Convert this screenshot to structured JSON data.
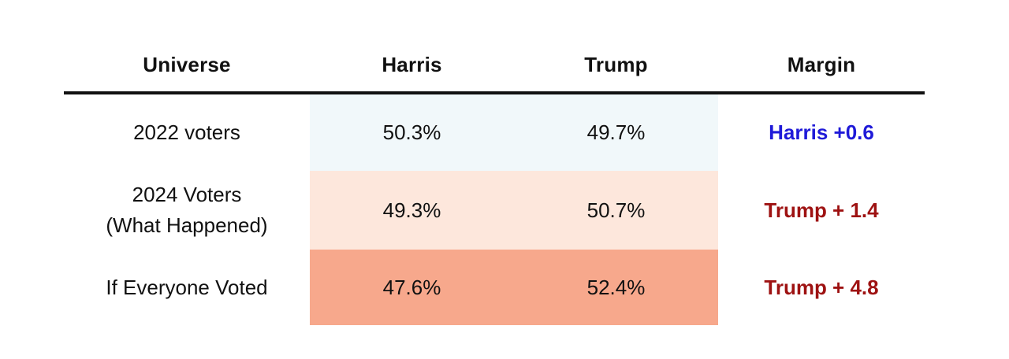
{
  "table": {
    "header": {
      "universe": "Universe",
      "harris": "Harris",
      "trump": "Trump",
      "margin": "Margin"
    },
    "rows": [
      {
        "universe_line1": "2022 voters",
        "universe_line2": "",
        "harris": "50.3%",
        "trump": "49.7%",
        "margin": "Harris +0.6",
        "margin_color": "#1f1ad8",
        "band_color": "#f1f8fa"
      },
      {
        "universe_line1": "2024 Voters",
        "universe_line2": "(What Happened)",
        "harris": "49.3%",
        "trump": "50.7%",
        "margin": "Trump + 1.4",
        "margin_color": "#9e1212",
        "band_color": "#fde7dc"
      },
      {
        "universe_line1": "If Everyone Voted",
        "universe_line2": "",
        "harris": "47.6%",
        "trump": "52.4%",
        "margin": "Trump + 4.8",
        "margin_color": "#9e1212",
        "band_color": "#f7a88c"
      }
    ],
    "colors": {
      "text": "#111111",
      "header_rule": "#111111",
      "harris_blue": "#1f1ad8",
      "trump_red": "#9e1212",
      "band_harris_lead": "#f1f8fa",
      "band_trump_slight": "#fde7dc",
      "band_trump_strong": "#f7a88c"
    }
  },
  "chart_data": {
    "type": "table",
    "title": "",
    "columns": [
      "Universe",
      "Harris",
      "Trump",
      "Margin"
    ],
    "rows": [
      [
        "2022 voters",
        "50.3%",
        "49.7%",
        "Harris +0.6"
      ],
      [
        "2024 Voters (What Happened)",
        "49.3%",
        "50.7%",
        "Trump + 1.4"
      ],
      [
        "If Everyone Voted",
        "47.6%",
        "52.4%",
        "Trump + 4.8"
      ]
    ],
    "series": [
      {
        "name": "Harris",
        "values": [
          50.3,
          49.3,
          47.6
        ]
      },
      {
        "name": "Trump",
        "values": [
          49.7,
          50.7,
          52.4
        ]
      },
      {
        "name": "Margin",
        "values": [
          0.6,
          -1.4,
          -4.8
        ]
      }
    ],
    "layout_hints": {
      "shaded_columns": [
        "Harris",
        "Trump"
      ],
      "shading": "light blue for Harris lead, light peach to salmon for increasing Trump lead",
      "margin_text_colors": {
        "harris_lead": "#1f1ad8",
        "trump_lead": "#9e1212"
      },
      "header_rule": "thick black line under header row"
    }
  }
}
